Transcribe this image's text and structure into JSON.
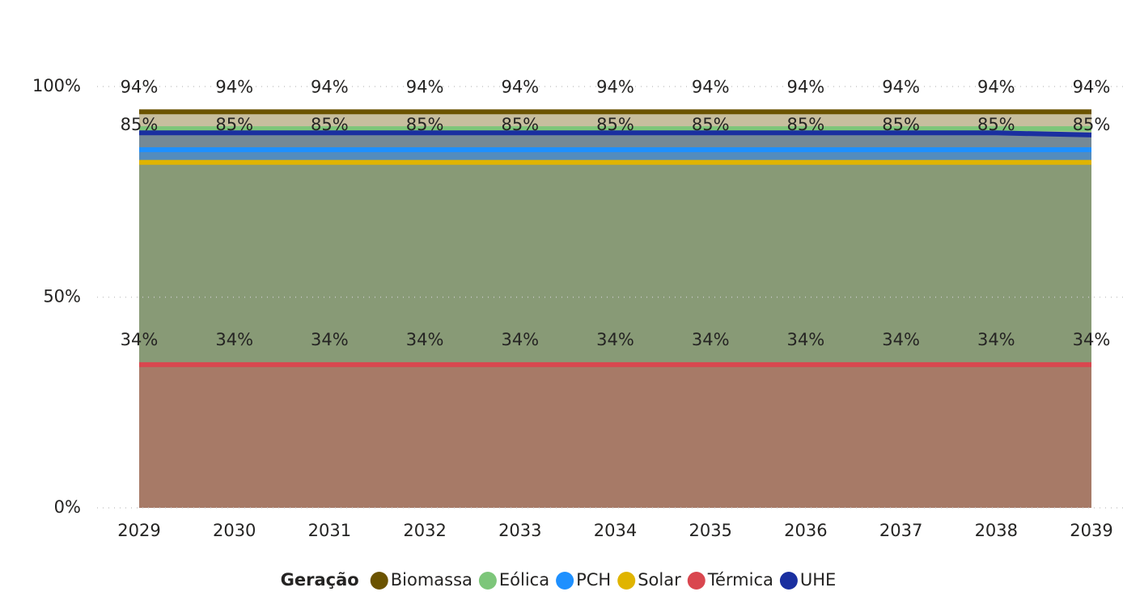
{
  "chart_data": {
    "type": "area",
    "categories": [
      "2029",
      "2030",
      "2031",
      "2032",
      "2033",
      "2034",
      "2035",
      "2036",
      "2037",
      "2038",
      "2039"
    ],
    "series": [
      {
        "name": "Biomassa",
        "color": "#6b5300",
        "values": [
          94,
          94,
          94,
          94,
          94,
          94,
          94,
          94,
          94,
          94,
          94
        ],
        "value_labels": [
          "94%",
          "94%",
          "94%",
          "94%",
          "94%",
          "94%",
          "94%",
          "94%",
          "94%",
          "94%",
          "94%"
        ]
      },
      {
        "name": "Eólica",
        "color": "#7dc67a",
        "values": [
          90,
          90,
          90,
          90,
          90,
          90,
          90,
          90,
          90,
          90,
          90
        ]
      },
      {
        "name": "PCH",
        "color": "#1e90ff",
        "values": [
          85,
          85,
          85,
          85,
          85,
          85,
          85,
          85,
          85,
          85,
          85
        ],
        "value_labels": [
          "85%",
          "85%",
          "85%",
          "85%",
          "85%",
          "85%",
          "85%",
          "85%",
          "85%",
          "85%",
          "85%"
        ]
      },
      {
        "name": "Solar",
        "color": "#e0b400",
        "values": [
          82,
          82,
          82,
          82,
          82,
          82,
          82,
          82,
          82,
          82,
          82
        ]
      },
      {
        "name": "Térmica",
        "color": "#d9474f",
        "values": [
          34,
          34,
          34,
          34,
          34,
          34,
          34,
          34,
          34,
          34,
          34
        ],
        "value_labels": [
          "34%",
          "34%",
          "34%",
          "34%",
          "34%",
          "34%",
          "34%",
          "34%",
          "34%",
          "34%",
          "34%"
        ]
      },
      {
        "name": "UHE",
        "color": "#1a2fa0",
        "values": [
          89,
          89,
          89,
          89,
          89,
          89,
          89,
          89,
          89,
          89,
          88.5
        ]
      }
    ],
    "ylim": [
      0,
      100
    ],
    "yticks": [
      {
        "value": 0,
        "label": "0%"
      },
      {
        "value": 50,
        "label": "50%"
      },
      {
        "value": 100,
        "label": "100%"
      }
    ],
    "grid": true,
    "legend_title": "Geração",
    "legend": "bottom"
  }
}
